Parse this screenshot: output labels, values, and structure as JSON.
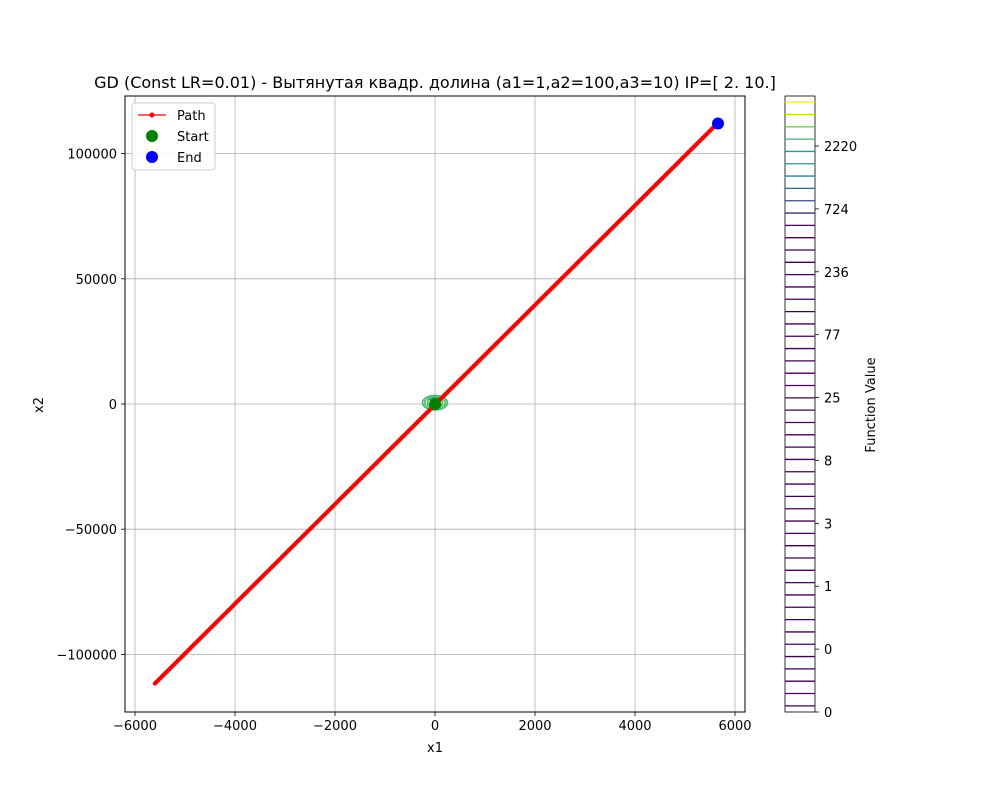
{
  "chart_data": {
    "type": "line",
    "title": "GD (Const LR=0.01) - Вытянутая квадр. долина (a1=1,a2=100,a3=10) IP=[ 2. 10.]",
    "xlabel": "x1",
    "ylabel": "x2",
    "xlim": [
      -6200,
      6200
    ],
    "ylim": [
      -123000,
      123000
    ],
    "xticks": [
      -6000,
      -4000,
      -2000,
      0,
      2000,
      4000,
      6000
    ],
    "xtick_labels": [
      "−6000",
      "−4000",
      "−2000",
      "0",
      "2000",
      "4000",
      "6000"
    ],
    "yticks": [
      -100000,
      -50000,
      0,
      50000,
      100000
    ],
    "ytick_labels": [
      "−100000",
      "−50000",
      "0",
      "50000",
      "100000"
    ],
    "grid": true,
    "legend_position": "top-left",
    "series": [
      {
        "name": "Path",
        "color": "#ff0000",
        "marker": "dot",
        "path_segments": [
          {
            "from": [
              -5600,
              -111600
            ],
            "to": [
              5640,
              111900
            ],
            "count": 320
          }
        ]
      }
    ],
    "markers": [
      {
        "name": "Start",
        "x": 2,
        "y": 10,
        "color": "#008000"
      },
      {
        "name": "End",
        "x": 5660,
        "y": 112000,
        "color": "#0000ff"
      }
    ],
    "contour": {
      "description": "contour lines of the function, small near origin",
      "x_range": [
        -250,
        250
      ],
      "y_range": [
        -2000,
        3000
      ],
      "levels": 3
    },
    "colorbar": {
      "label": "Function Value",
      "tick_labels": [
        "0",
        "0",
        "1",
        "3",
        "8",
        "25",
        "77",
        "236",
        "724",
        "2220"
      ],
      "colormap": "viridis"
    }
  }
}
